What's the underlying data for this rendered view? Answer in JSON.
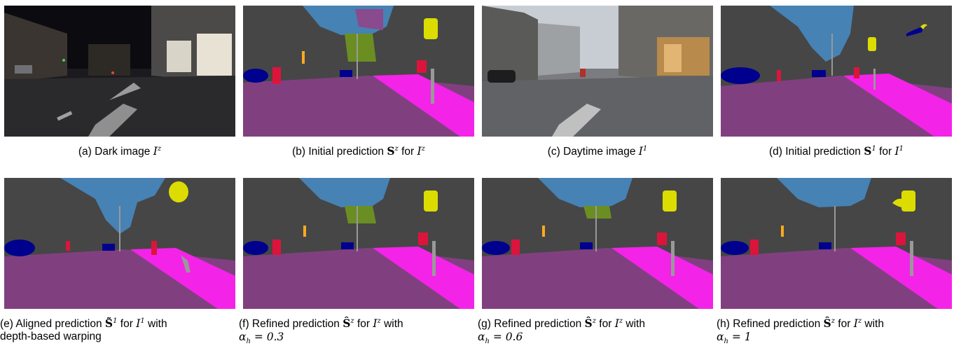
{
  "figure": {
    "panels": [
      {
        "id": "a",
        "kind": "photo-dark",
        "caption_text": "(a) Dark image ",
        "math_base": "I",
        "math_sup": "z",
        "math_rest": ""
      },
      {
        "id": "b",
        "kind": "seg-initial-dark",
        "caption_text": "(b) Initial prediction ",
        "bold": "S",
        "bold_sup": "z",
        "mid": " for ",
        "math_base": "I",
        "math_sup": "z"
      },
      {
        "id": "c",
        "kind": "photo-day",
        "caption_text": "(c) Daytime image ",
        "math_base": "I",
        "math_sup": "1"
      },
      {
        "id": "d",
        "kind": "seg-initial-day",
        "caption_text": "(d) Initial prediction ",
        "bold": "S",
        "bold_sup": "1",
        "mid": " for ",
        "math_base": "I",
        "math_sup": "1"
      },
      {
        "id": "e",
        "kind": "seg-aligned",
        "caption_line1": "(e) Aligned prediction ",
        "bold": "S̃",
        "bold_sup": "1",
        "mid": " for ",
        "math_base": "I",
        "math_sup": "1",
        "tail": " with",
        "caption_line2": "depth-based warping"
      },
      {
        "id": "f",
        "kind": "seg-refined-03",
        "caption_line1": "(f) Refined prediction ",
        "bold": "Ŝ",
        "bold_sup": "z",
        "mid": " for ",
        "math_base": "I",
        "math_sup": "z",
        "tail": " with",
        "alpha_sub": "h",
        "alpha_val": " = 0.3"
      },
      {
        "id": "g",
        "kind": "seg-refined-06",
        "caption_line1": "(g) Refined prediction ",
        "bold": "Ŝ",
        "bold_sup": "z",
        "mid": " for ",
        "math_base": "I",
        "math_sup": "z",
        "tail": " with",
        "alpha_sub": "h",
        "alpha_val": " = 0.6"
      },
      {
        "id": "h",
        "kind": "seg-refined-1",
        "caption_line1": "(h) Refined prediction ",
        "bold": "Ŝ",
        "bold_sup": "z",
        "mid": " for ",
        "math_base": "I",
        "math_sup": "z",
        "tail": " with",
        "alpha_sub": "h",
        "alpha_val": " = 1"
      }
    ],
    "colors": {
      "road": "#804080",
      "sidewalk": "#f423e8",
      "background": "#464646",
      "sky": "#4682b4",
      "vegetation": "#6b8e23",
      "car": "#00008e",
      "person": "#dc143c",
      "sign": "#dcdc00",
      "light": "#faaa1e",
      "pole": "#999999"
    }
  }
}
